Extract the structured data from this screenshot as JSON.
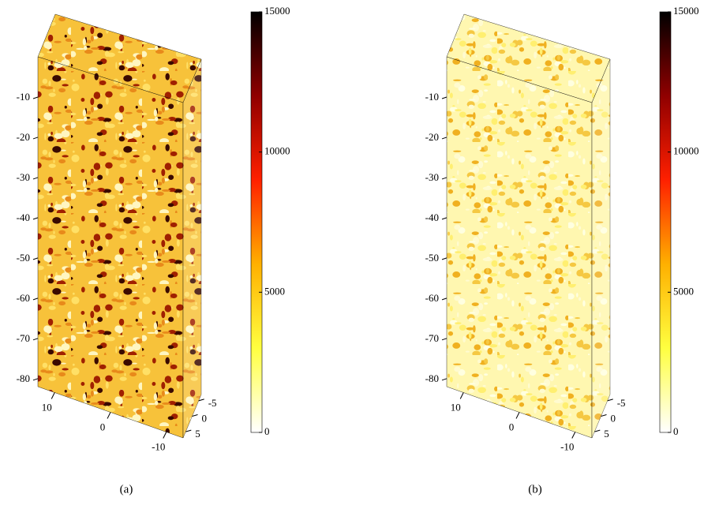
{
  "chart_data": [
    {
      "type": "volume",
      "caption": "(a)",
      "zlim": [
        -82,
        0
      ],
      "zticks": [
        -10,
        -20,
        -30,
        -40,
        -50,
        -60,
        -70,
        -80
      ],
      "xlim": [
        13,
        -13
      ],
      "xticks": [
        10,
        0,
        -10
      ],
      "ylim": [
        -7,
        7
      ],
      "yticks": [
        -5,
        0,
        5
      ],
      "clim": [
        0,
        15000
      ],
      "cticks": [
        0,
        5000,
        10000,
        15000
      ],
      "colormap": [
        "#ffffff",
        "#ffff40",
        "#ffb000",
        "#ff2000",
        "#900000",
        "#000000"
      ],
      "colors": [
        "#f7c23a",
        "#ffe066",
        "#e88a1a",
        "#a02000",
        "#3a0a00",
        "#fff6c0"
      ]
    },
    {
      "type": "volume",
      "caption": "(b)",
      "zlim": [
        -82,
        0
      ],
      "zticks": [
        -10,
        -20,
        -30,
        -40,
        -50,
        -60,
        -70,
        -80
      ],
      "xlim": [
        13,
        -13
      ],
      "xticks": [
        10,
        0,
        -10
      ],
      "ylim": [
        -7,
        7
      ],
      "yticks": [
        -5,
        0,
        5
      ],
      "clim": [
        0,
        15000
      ],
      "cticks": [
        0,
        5000,
        10000,
        15000
      ],
      "colormap": [
        "#ffffff",
        "#ffff40",
        "#ffb000",
        "#ff2000",
        "#900000",
        "#000000"
      ],
      "colors": [
        "#fff7b0",
        "#ffef70",
        "#ffffe0",
        "#f5c842",
        "#fffbd0",
        "#f0b020"
      ]
    }
  ]
}
